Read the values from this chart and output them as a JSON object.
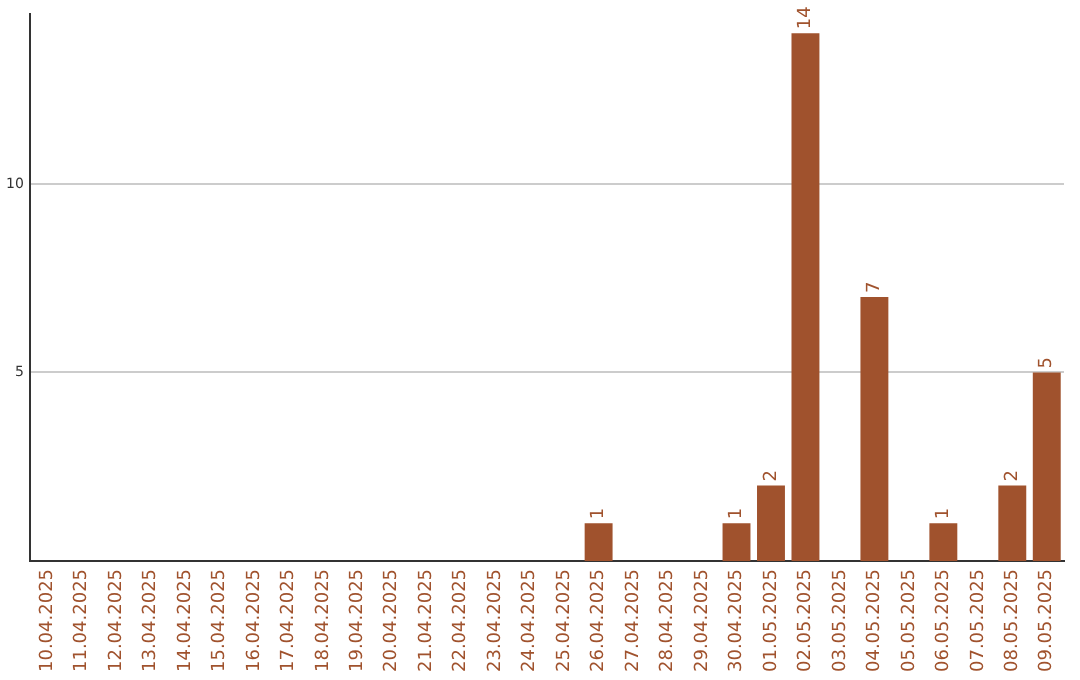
{
  "chart_data": {
    "type": "bar",
    "categories": [
      "10.04.2025",
      "11.04.2025",
      "12.04.2025",
      "13.04.2025",
      "14.04.2025",
      "15.04.2025",
      "16.04.2025",
      "17.04.2025",
      "18.04.2025",
      "19.04.2025",
      "20.04.2025",
      "21.04.2025",
      "22.04.2025",
      "23.04.2025",
      "24.04.2025",
      "25.04.2025",
      "26.04.2025",
      "27.04.2025",
      "28.04.2025",
      "29.04.2025",
      "30.04.2025",
      "01.05.2025",
      "02.05.2025",
      "03.05.2025",
      "04.05.2025",
      "05.05.2025",
      "06.05.2025",
      "07.05.2025",
      "08.05.2025",
      "09.05.2025"
    ],
    "values": [
      0,
      0,
      0,
      0,
      0,
      0,
      0,
      0,
      0,
      0,
      0,
      0,
      0,
      0,
      0,
      0,
      1,
      0,
      0,
      0,
      1,
      2,
      14,
      0,
      7,
      0,
      1,
      0,
      2,
      5
    ],
    "value_labels": [
      null,
      null,
      null,
      null,
      null,
      null,
      null,
      null,
      null,
      null,
      null,
      null,
      null,
      null,
      null,
      null,
      "1",
      null,
      null,
      null,
      "1",
      "2",
      "14",
      null,
      "7",
      null,
      "1",
      null,
      "2",
      "5"
    ],
    "color": "#a0522d",
    "ylim": [
      0,
      14.5
    ],
    "yticks": [
      5,
      10
    ],
    "grid": "y",
    "legend": false
  }
}
